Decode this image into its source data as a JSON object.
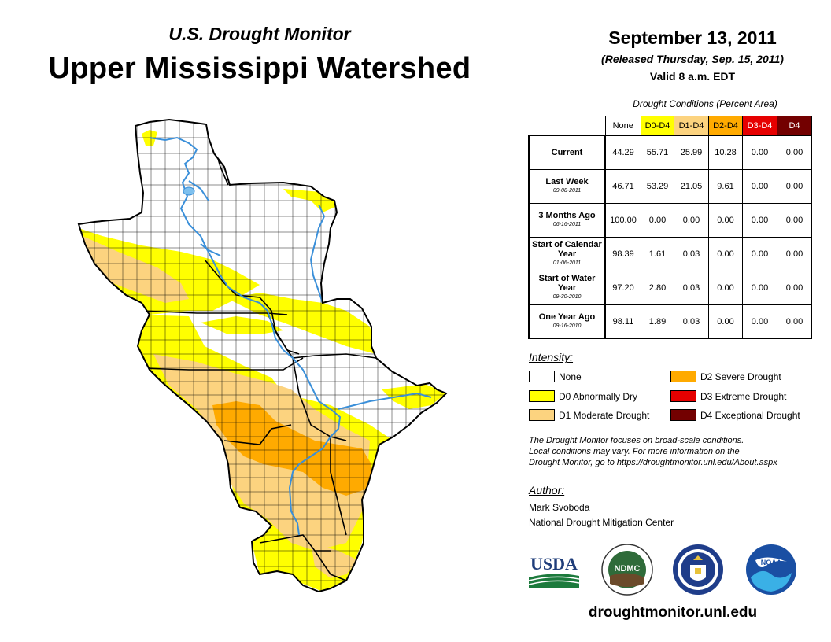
{
  "header": {
    "subtitle": "U.S. Drought Monitor",
    "title": "Upper Mississippi Watershed",
    "date": "September 13, 2011",
    "released": "(Released Thursday, Sep. 15, 2011)",
    "valid": "Valid 8 a.m. EDT"
  },
  "table": {
    "caption": "Drought Conditions (Percent Area)",
    "columns": [
      "None",
      "D0-D4",
      "D1-D4",
      "D2-D4",
      "D3-D4",
      "D4"
    ],
    "rows": [
      {
        "label": "Current",
        "sub": "",
        "values": [
          "44.29",
          "55.71",
          "25.99",
          "10.28",
          "0.00",
          "0.00"
        ]
      },
      {
        "label": "Last Week",
        "sub": "09-08-2011",
        "values": [
          "46.71",
          "53.29",
          "21.05",
          "9.61",
          "0.00",
          "0.00"
        ]
      },
      {
        "label": "3 Months Ago",
        "sub": "06-16-2011",
        "values": [
          "100.00",
          "0.00",
          "0.00",
          "0.00",
          "0.00",
          "0.00"
        ]
      },
      {
        "label": "Start of Calendar Year",
        "sub": "01-06-2011",
        "values": [
          "98.39",
          "1.61",
          "0.03",
          "0.00",
          "0.00",
          "0.00"
        ]
      },
      {
        "label": "Start of Water Year",
        "sub": "09-30-2010",
        "values": [
          "97.20",
          "2.80",
          "0.03",
          "0.00",
          "0.00",
          "0.00"
        ]
      },
      {
        "label": "One Year Ago",
        "sub": "09-16-2010",
        "values": [
          "98.11",
          "1.89",
          "0.03",
          "0.00",
          "0.00",
          "0.00"
        ]
      }
    ]
  },
  "legend": {
    "title": "Intensity:",
    "items": [
      {
        "label": "None",
        "color": "#ffffff"
      },
      {
        "label": "D0 Abnormally Dry",
        "color": "#ffff00"
      },
      {
        "label": "D1 Moderate Drought",
        "color": "#fcd37f"
      },
      {
        "label": "D2 Severe Drought",
        "color": "#ffaa00"
      },
      {
        "label": "D3 Extreme Drought",
        "color": "#e60000"
      },
      {
        "label": "D4 Exceptional Drought",
        "color": "#730000"
      }
    ]
  },
  "note": {
    "line1": "The Drought Monitor focuses on broad-scale conditions.",
    "line2": "Local conditions may vary. For more information on the",
    "line3": "Drought Monitor, go to https://droughtmonitor.unl.edu/About.aspx"
  },
  "author": {
    "label": "Author:",
    "name": "Mark Svoboda",
    "org": "National Drought Mitigation Center"
  },
  "logos": {
    "usda": "USDA",
    "ndmc": "NDMC",
    "noaa": "NOAA"
  },
  "website": "droughtmonitor.unl.edu",
  "colors": {
    "none": "#ffffff",
    "d0": "#ffff00",
    "d1": "#fcd37f",
    "d2": "#ffaa00",
    "d3": "#e60000",
    "d4": "#730000",
    "river": "#3a8fd9"
  }
}
